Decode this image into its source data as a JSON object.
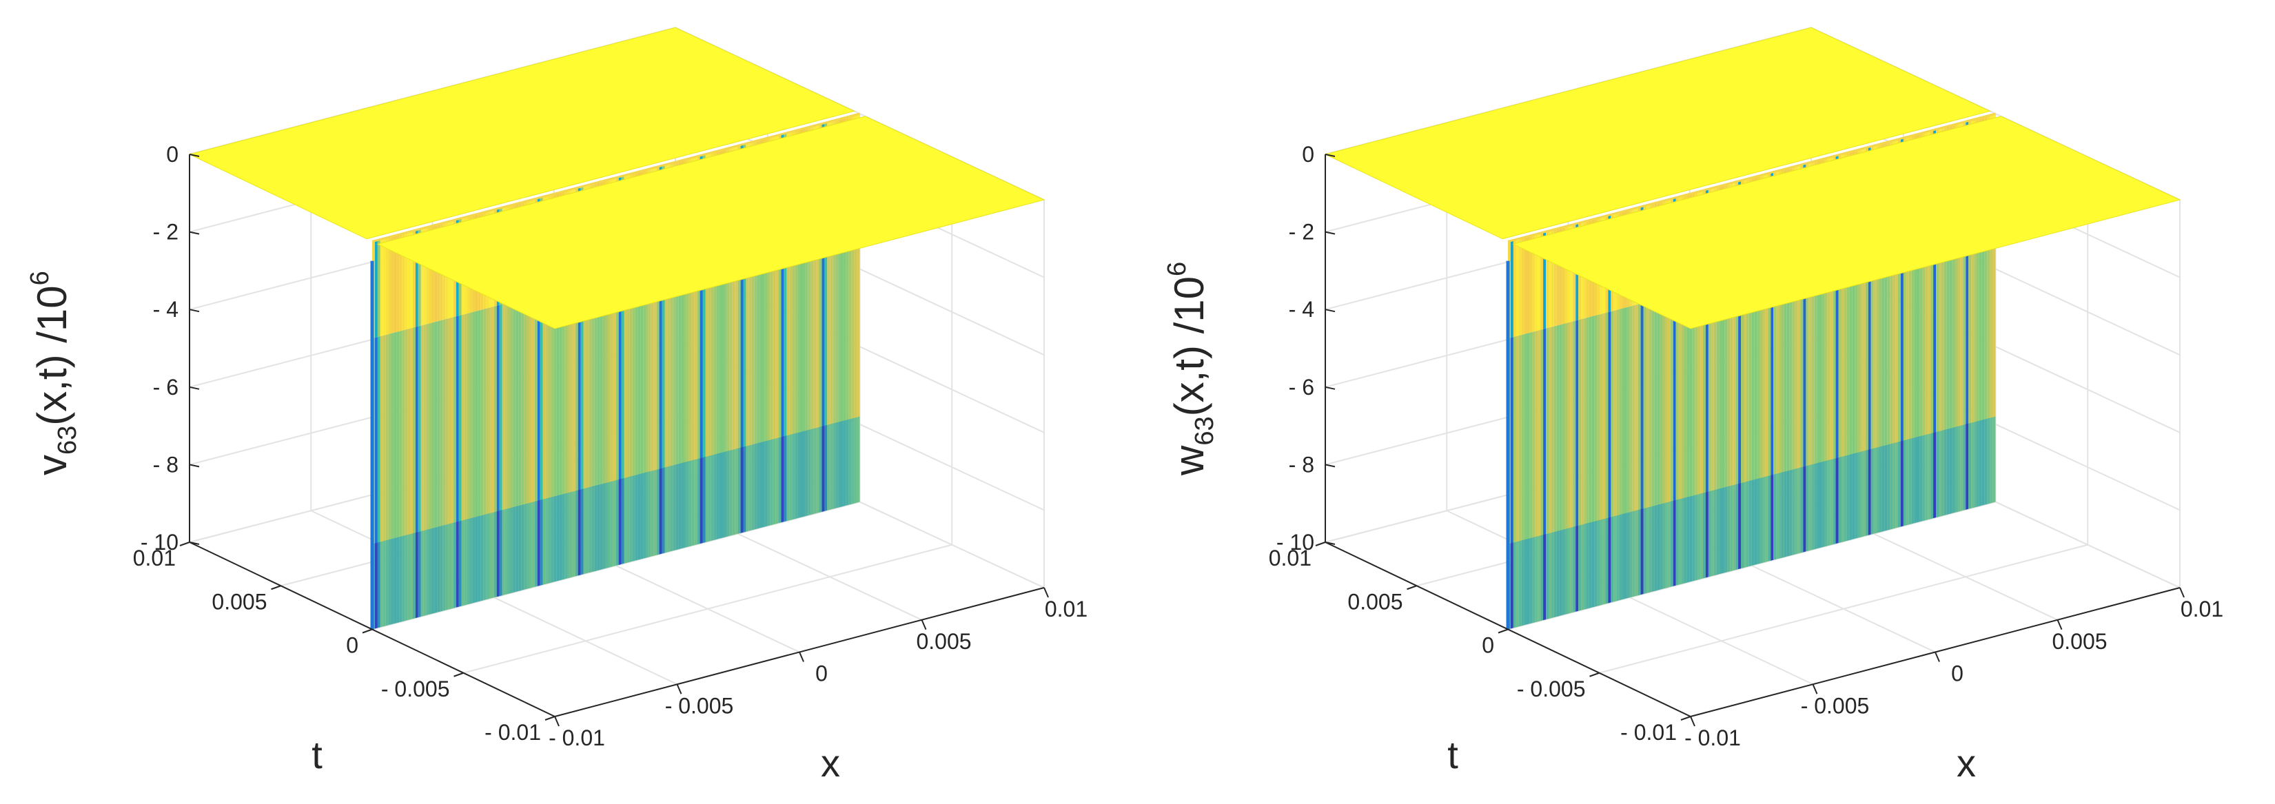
{
  "chart_data": [
    {
      "type": "surface",
      "title": "",
      "zlabel": {
        "base": "v",
        "sub": "63",
        "mid": "(x,t) /10",
        "sup": "6"
      },
      "xlabel": "x",
      "ylabel": "t",
      "xlim": [
        -0.01,
        0.01
      ],
      "ylim": [
        -0.01,
        0.01
      ],
      "zlim": [
        -10,
        0
      ],
      "x_ticks": [
        "- 0.01",
        "- 0.005",
        "0",
        "0.005",
        "0.01"
      ],
      "y_ticks": [
        "- 0.01",
        "- 0.005",
        "0",
        "0.005",
        "0.01"
      ],
      "z_ticks": [
        "0",
        "- 2",
        "- 4",
        "- 6",
        "- 8",
        "- 10"
      ],
      "z_tick_values": [
        0,
        -2,
        -4,
        -6,
        -8,
        -10
      ],
      "surface": {
        "plateau_value": 0,
        "trough_t": 0,
        "trough_depth": -10,
        "oscillations_along_x": 12
      },
      "colormap": [
        "#3e26a8",
        "#1e78dc",
        "#14b7c1",
        "#63cb8a",
        "#f2c84a",
        "#fffc32"
      ]
    },
    {
      "type": "surface",
      "title": "",
      "zlabel": {
        "base": "w",
        "sub": "63",
        "mid": "(x,t) /10",
        "sup": "6"
      },
      "xlabel": "x",
      "ylabel": "t",
      "xlim": [
        -0.01,
        0.01
      ],
      "ylim": [
        -0.01,
        0.01
      ],
      "zlim": [
        -10,
        0
      ],
      "x_ticks": [
        "- 0.01",
        "- 0.005",
        "0",
        "0.005",
        "0.01"
      ],
      "y_ticks": [
        "- 0.01",
        "- 0.005",
        "0",
        "0.005",
        "0.01"
      ],
      "z_ticks": [
        "0",
        "- 2",
        "- 4",
        "- 6",
        "- 8",
        "- 10"
      ],
      "z_tick_values": [
        0,
        -2,
        -4,
        -6,
        -8,
        -10
      ],
      "surface": {
        "plateau_value": 0,
        "trough_t": 0,
        "trough_depth": -10,
        "oscillations_along_x": 15
      },
      "colormap": [
        "#3e26a8",
        "#1e78dc",
        "#14b7c1",
        "#63cb8a",
        "#f2c84a",
        "#fffc32"
      ]
    }
  ]
}
